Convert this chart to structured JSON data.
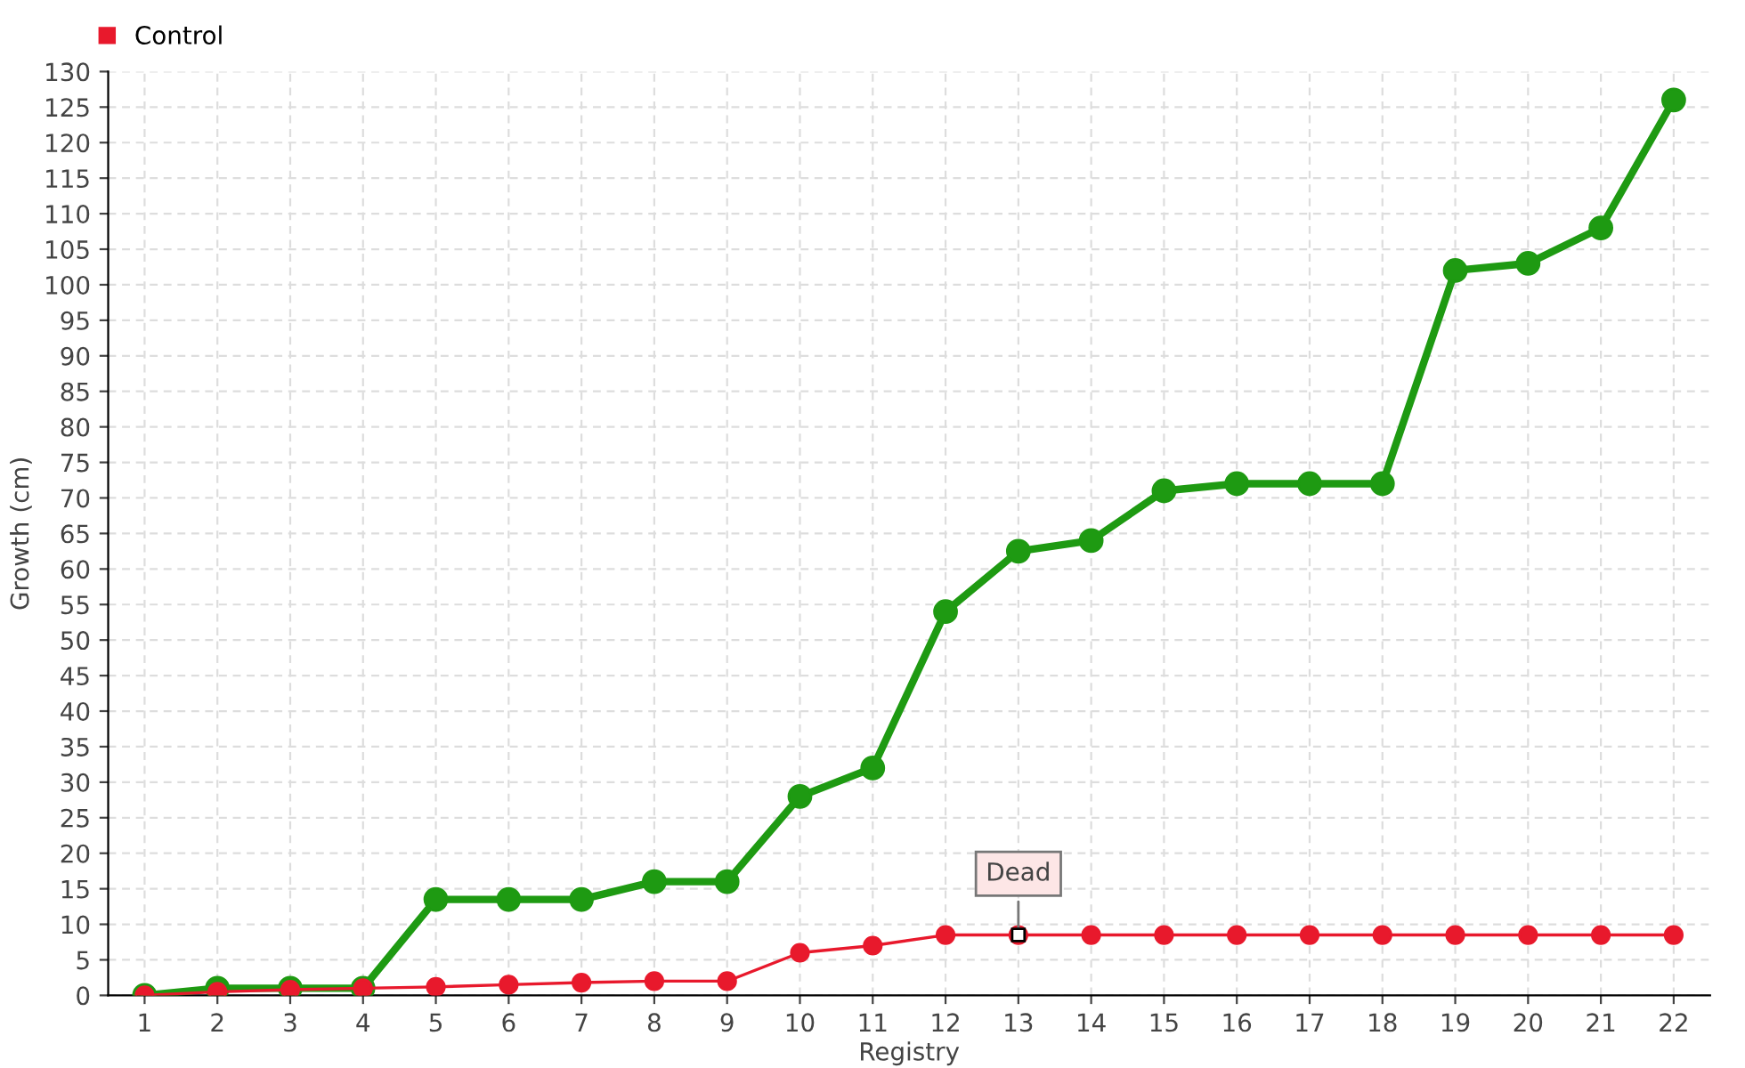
{
  "chart_data": {
    "type": "line",
    "xlabel": "Registry",
    "ylabel": "Growth (cm)",
    "categories": [
      "1",
      "2",
      "3",
      "4",
      "5",
      "6",
      "7",
      "8",
      "9",
      "10",
      "11",
      "12",
      "13",
      "14",
      "15",
      "16",
      "17",
      "18",
      "19",
      "20",
      "21",
      "22"
    ],
    "series": [
      {
        "color": "#1e9a12",
        "values": [
          0,
          1,
          1,
          1,
          13.5,
          13.5,
          13.5,
          16,
          16,
          28,
          32,
          54,
          62.5,
          64,
          71,
          72,
          72,
          72,
          102,
          103,
          108,
          126
        ]
      },
      {
        "name": "Control",
        "color": "#e8192c",
        "values": [
          0,
          0.5,
          0.8,
          1,
          1.2,
          1.5,
          1.8,
          2,
          2,
          6,
          7,
          8.5,
          8.5,
          8.5,
          8.5,
          8.5,
          8.5,
          8.5,
          8.5,
          8.5,
          8.5,
          8.5
        ]
      }
    ],
    "annotations": [
      {
        "text": "Dead",
        "x": "13",
        "y": 8.5
      }
    ],
    "ylim": [
      0,
      130
    ],
    "yticks": [
      0,
      5,
      10,
      15,
      20,
      25,
      30,
      35,
      40,
      45,
      50,
      55,
      60,
      65,
      70,
      75,
      80,
      85,
      90,
      95,
      100,
      105,
      110,
      115,
      120,
      125,
      130
    ],
    "grid": true,
    "legend": "top left",
    "marker": "circle",
    "line_style": "solid"
  }
}
